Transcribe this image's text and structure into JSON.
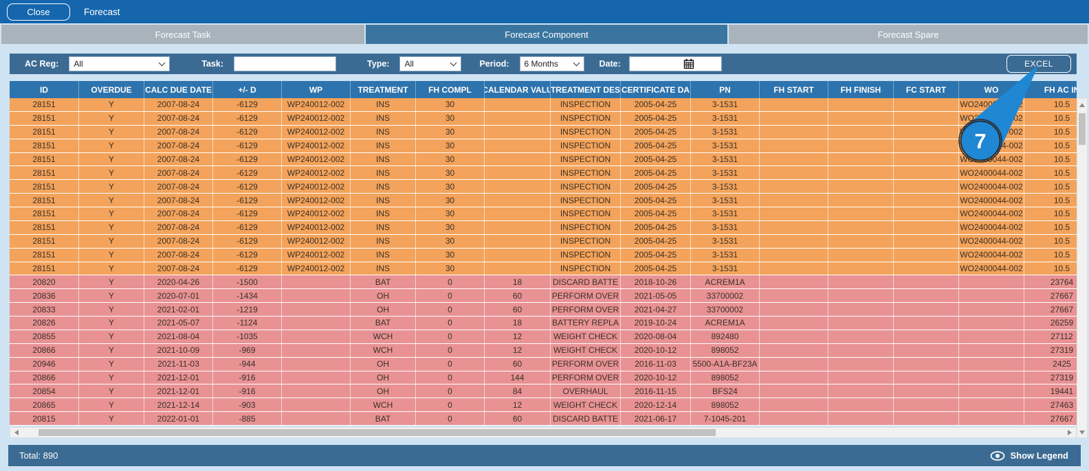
{
  "titlebar": {
    "close_label": "Close",
    "title": "Forecast"
  },
  "tabs": [
    {
      "label": "Forecast Task",
      "active": false
    },
    {
      "label": "Forecast Component",
      "active": true
    },
    {
      "label": "Forecast Spare",
      "active": false
    }
  ],
  "filters": {
    "ac_reg_label": "AC Reg:",
    "ac_reg_value": "All",
    "task_label": "Task:",
    "task_value": "",
    "type_label": "Type:",
    "type_value": "All",
    "period_label": "Period:",
    "period_value": "6 Months",
    "date_label": "Date:",
    "date_value": "",
    "excel_label": "EXCEL"
  },
  "table": {
    "columns": [
      "ID",
      "OVERDUE",
      "CALC DUE DATE",
      "+/- D",
      "WP",
      "TREATMENT",
      "FH COMPL",
      "CALENDAR VALU",
      "TREATMENT DES",
      "CERTIFICATE DA",
      "PN",
      "FH START",
      "FH FINISH",
      "FC START",
      "WO",
      "FH AC IN"
    ],
    "rows": [
      {
        "type": "orange",
        "cells": [
          "28151",
          "Y",
          "2007-08-24",
          "-6129",
          "WP240012-002",
          "INS",
          "30",
          "",
          "INSPECTION",
          "2005-04-25",
          "3-1531",
          "",
          "",
          "",
          "WO2400044-002",
          "10.5"
        ]
      },
      {
        "type": "orange",
        "cells": [
          "28151",
          "Y",
          "2007-08-24",
          "-6129",
          "WP240012-002",
          "INS",
          "30",
          "",
          "INSPECTION",
          "2005-04-25",
          "3-1531",
          "",
          "",
          "",
          "WO2400044-002",
          "10.5"
        ]
      },
      {
        "type": "orange",
        "cells": [
          "28151",
          "Y",
          "2007-08-24",
          "-6129",
          "WP240012-002",
          "INS",
          "30",
          "",
          "INSPECTION",
          "2005-04-25",
          "3-1531",
          "",
          "",
          "",
          "WO2400044-002",
          "10.5"
        ]
      },
      {
        "type": "orange",
        "cells": [
          "28151",
          "Y",
          "2007-08-24",
          "-6129",
          "WP240012-002",
          "INS",
          "30",
          "",
          "INSPECTION",
          "2005-04-25",
          "3-1531",
          "",
          "",
          "",
          "WO2400044-002",
          "10.5"
        ]
      },
      {
        "type": "orange",
        "cells": [
          "28151",
          "Y",
          "2007-08-24",
          "-6129",
          "WP240012-002",
          "INS",
          "30",
          "",
          "INSPECTION",
          "2005-04-25",
          "3-1531",
          "",
          "",
          "",
          "WO2400044-002",
          "10.5"
        ]
      },
      {
        "type": "orange",
        "cells": [
          "28151",
          "Y",
          "2007-08-24",
          "-6129",
          "WP240012-002",
          "INS",
          "30",
          "",
          "INSPECTION",
          "2005-04-25",
          "3-1531",
          "",
          "",
          "",
          "WO2400044-002",
          "10.5"
        ]
      },
      {
        "type": "orange",
        "cells": [
          "28151",
          "Y",
          "2007-08-24",
          "-6129",
          "WP240012-002",
          "INS",
          "30",
          "",
          "INSPECTION",
          "2005-04-25",
          "3-1531",
          "",
          "",
          "",
          "WO2400044-002",
          "10.5"
        ]
      },
      {
        "type": "orange",
        "cells": [
          "28151",
          "Y",
          "2007-08-24",
          "-6129",
          "WP240012-002",
          "INS",
          "30",
          "",
          "INSPECTION",
          "2005-04-25",
          "3-1531",
          "",
          "",
          "",
          "WO2400044-002",
          "10.5"
        ]
      },
      {
        "type": "orange",
        "cells": [
          "28151",
          "Y",
          "2007-08-24",
          "-6129",
          "WP240012-002",
          "INS",
          "30",
          "",
          "INSPECTION",
          "2005-04-25",
          "3-1531",
          "",
          "",
          "",
          "WO2400044-002",
          "10.5"
        ]
      },
      {
        "type": "orange",
        "cells": [
          "28151",
          "Y",
          "2007-08-24",
          "-6129",
          "WP240012-002",
          "INS",
          "30",
          "",
          "INSPECTION",
          "2005-04-25",
          "3-1531",
          "",
          "",
          "",
          "WO2400044-002",
          "10.5"
        ]
      },
      {
        "type": "orange",
        "cells": [
          "28151",
          "Y",
          "2007-08-24",
          "-6129",
          "WP240012-002",
          "INS",
          "30",
          "",
          "INSPECTION",
          "2005-04-25",
          "3-1531",
          "",
          "",
          "",
          "WO2400044-002",
          "10.5"
        ]
      },
      {
        "type": "orange",
        "cells": [
          "28151",
          "Y",
          "2007-08-24",
          "-6129",
          "WP240012-002",
          "INS",
          "30",
          "",
          "INSPECTION",
          "2005-04-25",
          "3-1531",
          "",
          "",
          "",
          "WO2400044-002",
          "10.5"
        ]
      },
      {
        "type": "orange",
        "cells": [
          "28151",
          "Y",
          "2007-08-24",
          "-6129",
          "WP240012-002",
          "INS",
          "30",
          "",
          "INSPECTION",
          "2005-04-25",
          "3-1531",
          "",
          "",
          "",
          "WO2400044-002",
          "10.5"
        ]
      },
      {
        "type": "pink",
        "cells": [
          "20820",
          "Y",
          "2020-04-26",
          "-1500",
          "",
          "BAT",
          "0",
          "18",
          "DISCARD BATTE",
          "2018-10-26",
          "ACREM1A",
          "",
          "",
          "",
          "",
          "23764"
        ]
      },
      {
        "type": "pink",
        "cells": [
          "20836",
          "Y",
          "2020-07-01",
          "-1434",
          "",
          "OH",
          "0",
          "60",
          "PERFORM OVER",
          "2021-05-05",
          "33700002",
          "",
          "",
          "",
          "",
          "27667"
        ]
      },
      {
        "type": "pink",
        "cells": [
          "20833",
          "Y",
          "2021-02-01",
          "-1219",
          "",
          "OH",
          "0",
          "60",
          "PERFORM OVER",
          "2021-04-27",
          "33700002",
          "",
          "",
          "",
          "",
          "27667"
        ]
      },
      {
        "type": "pink",
        "cells": [
          "20826",
          "Y",
          "2021-05-07",
          "-1124",
          "",
          "BAT",
          "0",
          "18",
          "BATTERY REPLA",
          "2019-10-24",
          "ACREM1A",
          "",
          "",
          "",
          "",
          "26259"
        ]
      },
      {
        "type": "pink",
        "cells": [
          "20855",
          "Y",
          "2021-08-04",
          "-1035",
          "",
          "WCH",
          "0",
          "12",
          "WEIGHT CHECK",
          "2020-08-04",
          "892480",
          "",
          "",
          "",
          "",
          "27112"
        ]
      },
      {
        "type": "pink",
        "cells": [
          "20866",
          "Y",
          "2021-10-09",
          "-969",
          "",
          "WCH",
          "0",
          "12",
          "WEIGHT CHECK",
          "2020-10-12",
          "898052",
          "",
          "",
          "",
          "",
          "27319"
        ]
      },
      {
        "type": "pink",
        "cells": [
          "20946",
          "Y",
          "2021-11-03",
          "-944",
          "",
          "OH",
          "0",
          "60",
          "PERFORM OVER",
          "2016-11-03",
          "5500-A1A-BF23A",
          "",
          "",
          "",
          "",
          "2425"
        ]
      },
      {
        "type": "pink",
        "cells": [
          "20866",
          "Y",
          "2021-12-01",
          "-916",
          "",
          "OH",
          "0",
          "144",
          "PERFORM OVER",
          "2020-10-12",
          "898052",
          "",
          "",
          "",
          "",
          "27319"
        ]
      },
      {
        "type": "pink",
        "cells": [
          "20854",
          "Y",
          "2021-12-01",
          "-916",
          "",
          "OH",
          "0",
          "84",
          "OVERHAUL",
          "2016-11-15",
          "BFS24",
          "",
          "",
          "",
          "",
          "19441"
        ]
      },
      {
        "type": "pink",
        "cells": [
          "20865",
          "Y",
          "2021-12-14",
          "-903",
          "",
          "WCH",
          "0",
          "12",
          "WEIGHT CHECK",
          "2020-12-14",
          "898052",
          "",
          "",
          "",
          "",
          "27463"
        ]
      },
      {
        "type": "pink",
        "cells": [
          "20815",
          "Y",
          "2022-01-01",
          "-885",
          "",
          "BAT",
          "0",
          "60",
          "DISCARD BATTE",
          "2021-06-17",
          "7-1045-201",
          "",
          "",
          "",
          "",
          "27667"
        ]
      }
    ]
  },
  "footer": {
    "total": "Total: 890",
    "show_legend": "Show Legend"
  },
  "annotation": {
    "number": "7"
  },
  "icons": {
    "calendar": "calendar-icon",
    "eye": "eye-icon",
    "select_chevron": "chevron-down-icon",
    "scroll_arrows": "scroll-arrow-icons"
  },
  "colors": {
    "titlebar_blue": "#1566ad",
    "tab_active": "#3a759f",
    "tab_inactive": "#a9b3bc",
    "filterbar_blue": "#3b6b93",
    "header_blue": "#2d73ad",
    "row_orange": "#f3a35b",
    "row_pink": "#e89294",
    "footer_blue": "#3b6b93",
    "annotation_blue": "#1f87d4",
    "page_background": "#cfe3f3"
  }
}
